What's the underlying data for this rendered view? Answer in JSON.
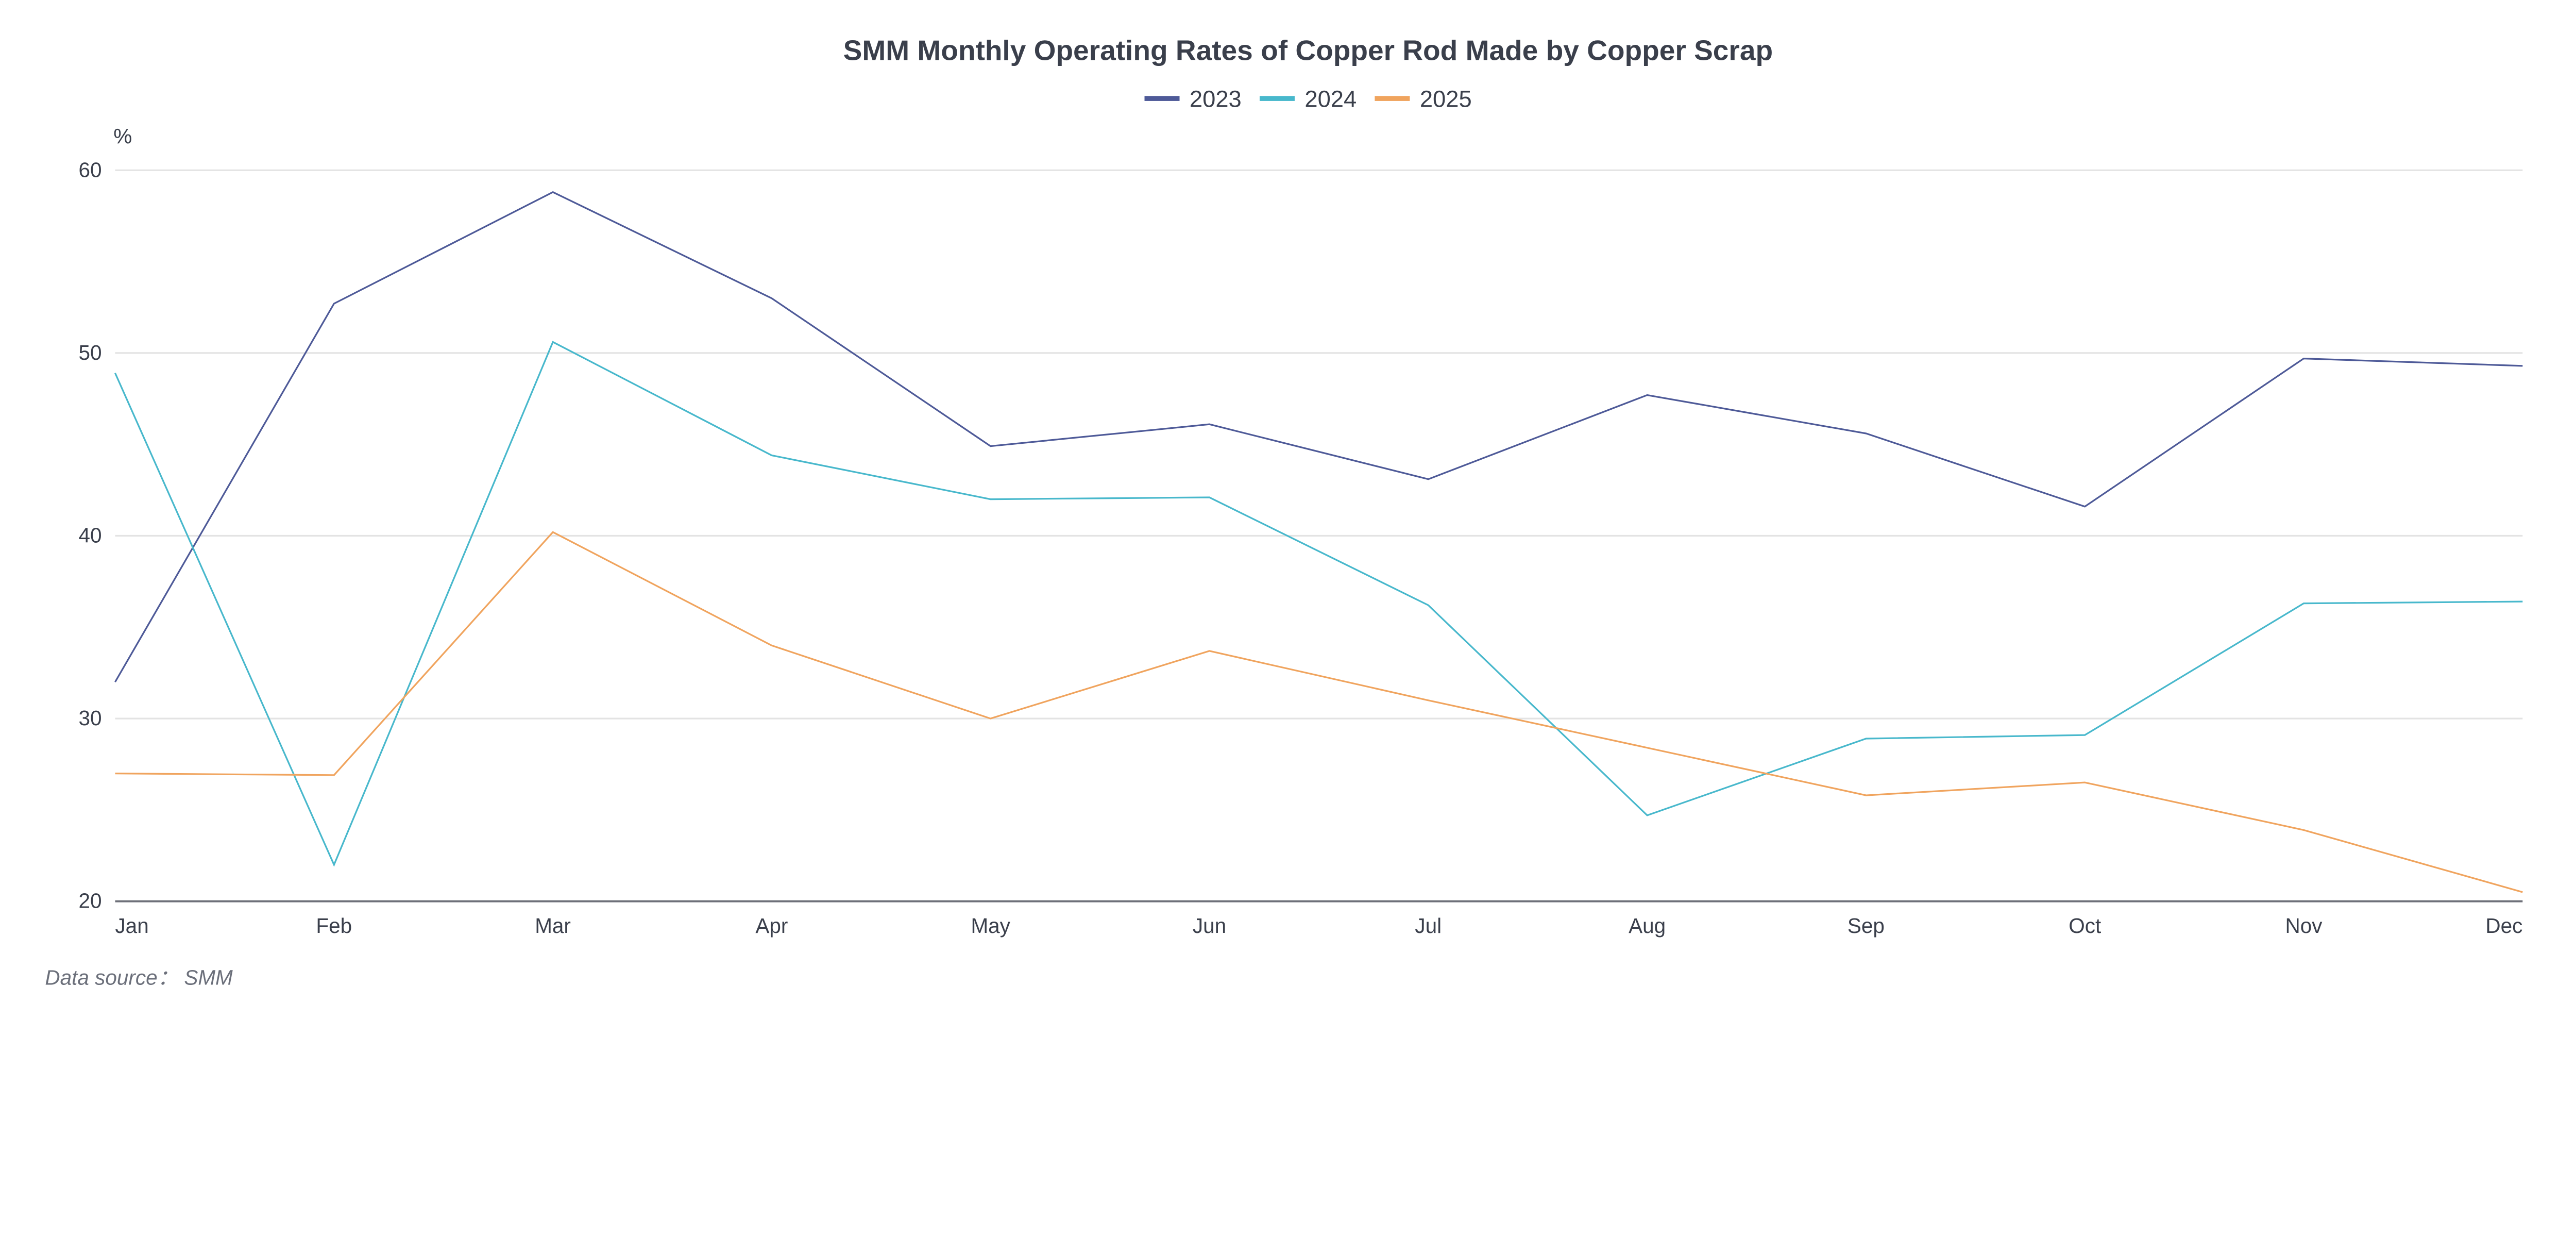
{
  "chart_data": {
    "type": "line",
    "title": "SMM Monthly Operating Rates of Copper Rod Made by Copper Scrap",
    "ylabel": "%",
    "xlabel": "",
    "categories": [
      "Jan",
      "Feb",
      "Mar",
      "Apr",
      "May",
      "Jun",
      "Jul",
      "Aug",
      "Sep",
      "Oct",
      "Nov",
      "Dec"
    ],
    "ylim": [
      20,
      60
    ],
    "yticks": [
      20,
      30,
      40,
      50,
      60
    ],
    "grid": true,
    "legend_placement": "top-center",
    "series": [
      {
        "name": "2023",
        "color": "#4e5a98",
        "values": [
          32.0,
          52.7,
          58.8,
          53.0,
          44.9,
          46.1,
          43.1,
          47.7,
          45.6,
          41.6,
          49.7,
          49.3
        ]
      },
      {
        "name": "2024",
        "color": "#48b8cc",
        "values": [
          48.9,
          22.0,
          50.6,
          44.4,
          42.0,
          42.1,
          36.2,
          24.7,
          28.9,
          29.1,
          36.3,
          36.4
        ]
      },
      {
        "name": "2025",
        "color": "#f0a45e",
        "values": [
          27.0,
          26.9,
          40.2,
          34.0,
          30.0,
          33.7,
          31.0,
          28.4,
          25.8,
          26.5,
          23.9,
          20.5
        ]
      }
    ],
    "source": "Data source： SMM"
  }
}
